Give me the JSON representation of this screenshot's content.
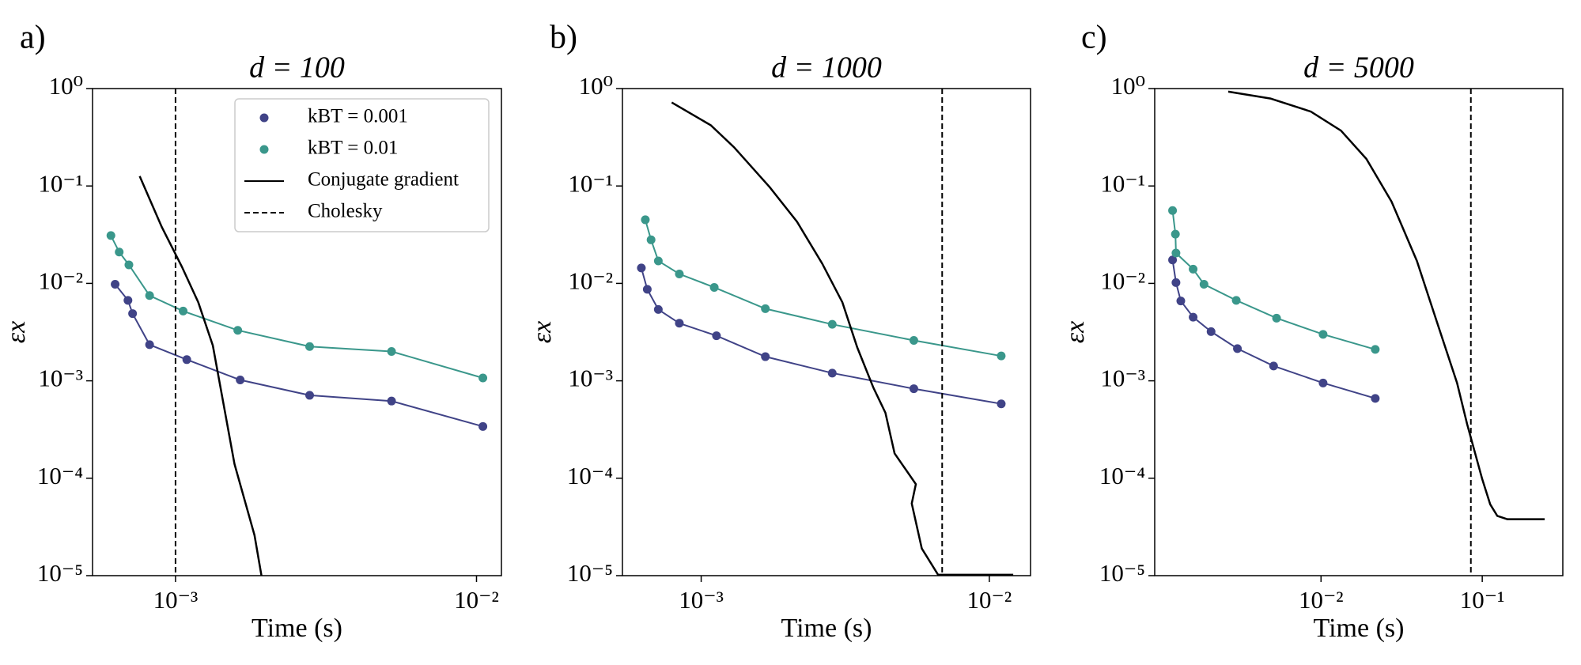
{
  "chart_data": [
    {
      "type": "loglog",
      "panel_label": "a)",
      "title": "d = 100",
      "xlabel": "Time (s)",
      "ylabel": "εx",
      "xlim": [
        0.00053,
        0.0121
      ],
      "ylim": [
        1e-05,
        1
      ],
      "log_x": true,
      "log_y": true,
      "xticks": [
        {
          "value": 0.001,
          "label": "10⁻³"
        },
        {
          "value": 0.01,
          "label": "10⁻²"
        }
      ],
      "yticks": [
        {
          "value": 1,
          "label": "10⁰"
        },
        {
          "value": 0.1,
          "label": "10⁻¹"
        },
        {
          "value": 0.01,
          "label": "10⁻²"
        },
        {
          "value": 0.001,
          "label": "10⁻³"
        },
        {
          "value": 0.0001,
          "label": "10⁻⁴"
        },
        {
          "value": 1e-05,
          "label": "10⁻⁵"
        }
      ],
      "legend": "upper right",
      "series": [
        {
          "name": "kBT = 0.001",
          "kind": "scatter_line",
          "color": "#404387",
          "x": [
            0.00063,
            0.000695,
            0.00072,
            0.00082,
            0.00109,
            0.00164,
            0.00279,
            0.00522,
            0.0105
          ],
          "values": [
            0.0098,
            0.0067,
            0.0049,
            0.00235,
            0.00165,
            0.00102,
            0.00071,
            0.00062,
            0.00034
          ]
        },
        {
          "name": "kBT = 0.01",
          "kind": "scatter_line",
          "color": "#3a978b",
          "x": [
            0.00061,
            0.00065,
            0.0007,
            0.00082,
            0.00106,
            0.00161,
            0.00279,
            0.00522,
            0.0105
          ],
          "values": [
            0.031,
            0.021,
            0.0155,
            0.0075,
            0.0052,
            0.0033,
            0.00225,
            0.002,
            0.00107
          ]
        },
        {
          "name": "Conjugate gradient",
          "kind": "line",
          "color": "#000000",
          "dash": false,
          "x": [
            0.00076,
            0.0009,
            0.00105,
            0.00119,
            0.00133,
            0.00157,
            0.00183,
            0.00193
          ],
          "values": [
            0.126,
            0.038,
            0.0148,
            0.0064,
            0.0023,
            0.00014,
            2.6e-05,
            1e-05
          ]
        },
        {
          "name": "Cholesky",
          "kind": "vline",
          "color": "#000000",
          "dash": true,
          "x": 0.001
        }
      ]
    },
    {
      "type": "loglog",
      "panel_label": "b)",
      "title": "d = 1000",
      "xlabel": "Time (s)",
      "ylabel": "εx",
      "xlim": [
        0.000533,
        0.0139
      ],
      "ylim": [
        1e-05,
        1
      ],
      "log_x": true,
      "log_y": true,
      "xticks": [
        {
          "value": 0.001,
          "label": "10⁻³"
        },
        {
          "value": 0.01,
          "label": "10⁻²"
        }
      ],
      "yticks": [
        {
          "value": 1,
          "label": "10⁰"
        },
        {
          "value": 0.1,
          "label": "10⁻¹"
        },
        {
          "value": 0.01,
          "label": "10⁻²"
        },
        {
          "value": 0.001,
          "label": "10⁻³"
        },
        {
          "value": 0.0001,
          "label": "10⁻⁴"
        },
        {
          "value": 1e-05,
          "label": "10⁻⁵"
        }
      ],
      "series": [
        {
          "kind": "scatter_line",
          "color": "#404387",
          "x": [
            0.00062,
            0.00065,
            0.00071,
            0.00084,
            0.00113,
            0.00167,
            0.00285,
            0.00547,
            0.011
          ],
          "values": [
            0.0144,
            0.0087,
            0.0054,
            0.0039,
            0.0029,
            0.00177,
            0.0012,
            0.00083,
            0.00058
          ]
        },
        {
          "kind": "scatter_line",
          "color": "#3a978b",
          "x": [
            0.00064,
            0.00067,
            0.00071,
            0.00084,
            0.00111,
            0.00167,
            0.00285,
            0.00547,
            0.011
          ],
          "values": [
            0.045,
            0.028,
            0.017,
            0.0125,
            0.0091,
            0.0055,
            0.0038,
            0.0026,
            0.0018
          ]
        },
        {
          "kind": "line",
          "color": "#000000",
          "dash": false,
          "x": [
            0.00079,
            0.00108,
            0.0013,
            0.00173,
            0.00215,
            0.00263,
            0.00309,
            0.00348,
            0.00396,
            0.00436,
            0.00469,
            0.00556,
            0.00538,
            0.00583,
            0.00664,
            0.0121
          ],
          "values": [
            0.72,
            0.42,
            0.25,
            0.097,
            0.043,
            0.016,
            0.0064,
            0.0022,
            0.00085,
            0.00047,
            0.00018,
            8.7e-05,
            5.5e-05,
            1.9e-05,
            1.02e-05,
            1.02e-05
          ]
        },
        {
          "kind": "vline",
          "color": "#000000",
          "dash": true,
          "x": 0.00686
        }
      ]
    },
    {
      "type": "loglog",
      "panel_label": "c)",
      "title": "d = 5000",
      "xlabel": "Time (s)",
      "ylabel": "εx",
      "xlim": [
        0.00093,
        0.316
      ],
      "ylim": [
        1e-05,
        1
      ],
      "log_x": true,
      "log_y": true,
      "xticks": [
        {
          "value": 0.01,
          "label": "10⁻²"
        },
        {
          "value": 0.1,
          "label": "10⁻¹"
        }
      ],
      "yticks": [
        {
          "value": 1,
          "label": "10⁰"
        },
        {
          "value": 0.1,
          "label": "10⁻¹"
        },
        {
          "value": 0.01,
          "label": "10⁻²"
        },
        {
          "value": 0.001,
          "label": "10⁻³"
        },
        {
          "value": 0.0001,
          "label": "10⁻⁴"
        },
        {
          "value": 1e-05,
          "label": "10⁻⁵"
        }
      ],
      "series": [
        {
          "kind": "scatter_line",
          "color": "#404387",
          "x": [
            0.0012,
            0.00126,
            0.00135,
            0.00161,
            0.00208,
            0.00303,
            0.00508,
            0.0103,
            0.0217
          ],
          "values": [
            0.0174,
            0.0102,
            0.0066,
            0.0045,
            0.0032,
            0.00214,
            0.00142,
            0.00095,
            0.00066
          ]
        },
        {
          "kind": "scatter_line",
          "color": "#3a978b",
          "x": [
            0.0012,
            0.00125,
            0.00126,
            0.00161,
            0.00188,
            0.00298,
            0.0053,
            0.0103,
            0.0217
          ],
          "values": [
            0.056,
            0.032,
            0.0205,
            0.014,
            0.0098,
            0.0067,
            0.0044,
            0.003,
            0.0021
          ]
        },
        {
          "kind": "line",
          "color": "#000000",
          "dash": false,
          "x": [
            0.00266,
            0.00486,
            0.00865,
            0.0133,
            0.0191,
            0.0274,
            0.0393,
            0.0524,
            0.0698,
            0.0806,
            0.1,
            0.112,
            0.124,
            0.143,
            0.244
          ],
          "values": [
            0.93,
            0.79,
            0.58,
            0.37,
            0.19,
            0.069,
            0.017,
            0.004,
            0.00095,
            0.00036,
            9.8e-05,
            5.4e-05,
            4.1e-05,
            3.8e-05,
            3.8e-05
          ]
        },
        {
          "kind": "vline",
          "color": "#000000",
          "dash": true,
          "x": 0.085
        }
      ]
    }
  ]
}
